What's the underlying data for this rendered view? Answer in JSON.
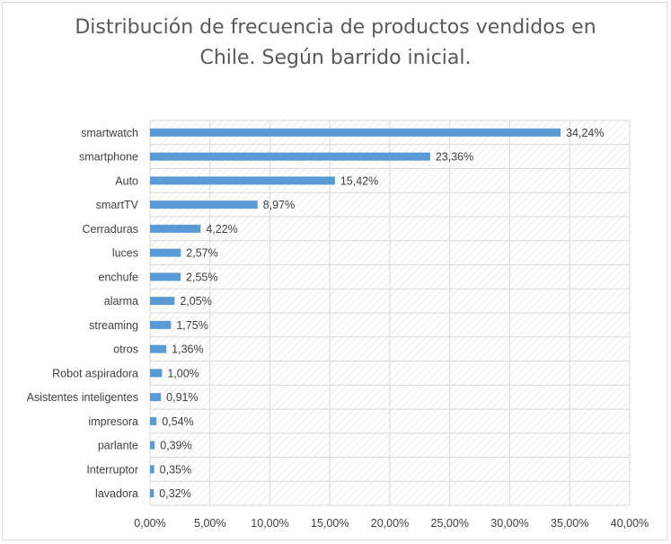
{
  "colors": {
    "bar": "#5b9bd5",
    "grid": "#d9d9d9",
    "hatch": "#e3e3e3",
    "text": "#404040",
    "title": "#595959"
  },
  "chart_data": {
    "type": "bar",
    "orientation": "horizontal",
    "title_lines": [
      "Distribución de frecuencia de productos vendidos en",
      "Chile. Según barrido inicial."
    ],
    "xlabel": "",
    "ylabel": "",
    "xlim": [
      0,
      40
    ],
    "grid": true,
    "legend": "none",
    "categories": [
      "smartwatch",
      "smartphone",
      "Auto",
      "smartTV",
      "Cerraduras",
      "luces",
      "enchufe",
      "alarma",
      "streaming",
      "otros",
      "Robot aspiradora",
      "Asistentes inteligentes",
      "impresora",
      "parlante",
      "Interruptor",
      "lavadora"
    ],
    "values": [
      34.24,
      23.36,
      15.42,
      8.97,
      4.22,
      2.57,
      2.55,
      2.05,
      1.75,
      1.36,
      1.0,
      0.91,
      0.54,
      0.39,
      0.35,
      0.32
    ],
    "value_labels": [
      "34,24%",
      "23,36%",
      "15,42%",
      "8,97%",
      "4,22%",
      "2,57%",
      "2,55%",
      "2,05%",
      "1,75%",
      "1,36%",
      "1,00%",
      "0,91%",
      "0,54%",
      "0,39%",
      "0,35%",
      "0,32%"
    ],
    "xticks": [
      0,
      5,
      10,
      15,
      20,
      25,
      30,
      35,
      40
    ],
    "xtick_labels": [
      "0,00%",
      "5,00%",
      "10,00%",
      "15,00%",
      "20,00%",
      "25,00%",
      "30,00%",
      "35,00%",
      "40,00%"
    ]
  }
}
